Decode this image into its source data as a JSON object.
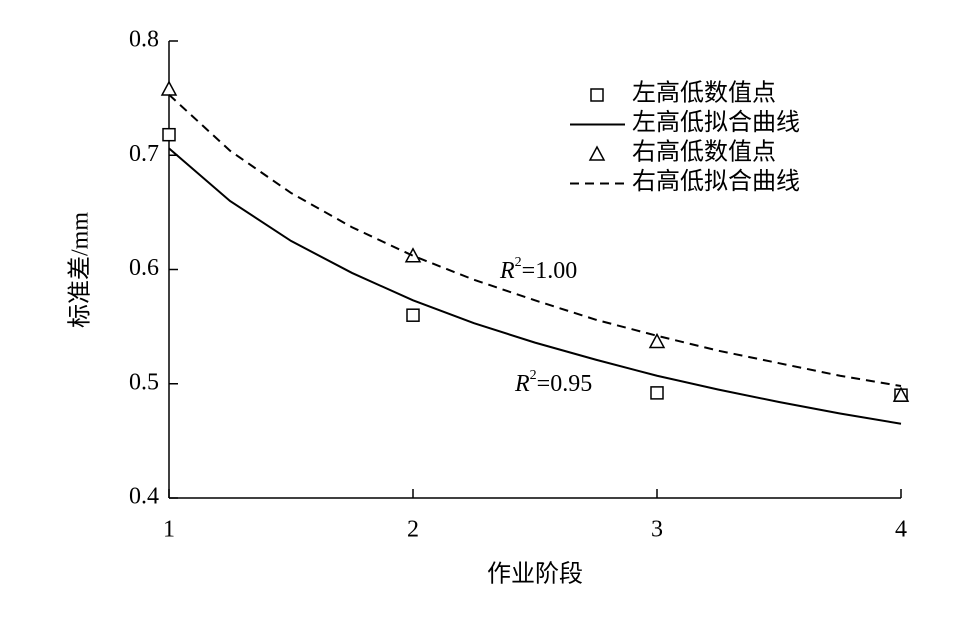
{
  "chart_data": {
    "type": "scatter",
    "x_label": "作业阶段",
    "y_label": "标准差/mm",
    "xlim": [
      1,
      4
    ],
    "xticks": [
      1,
      2,
      3,
      4
    ],
    "ylim": [
      0.4,
      0.8
    ],
    "yticks": [
      0.4,
      0.5,
      0.6,
      0.7,
      0.8
    ],
    "legend": "upper right",
    "series": [
      {
        "name": "左高低数值点",
        "kind": "points",
        "marker": "square",
        "color": "#000000",
        "x": [
          1,
          2,
          3,
          4
        ],
        "values": [
          0.718,
          0.56,
          0.492,
          0.49
        ]
      },
      {
        "name": "左高低拟合曲线",
        "kind": "line",
        "style": "solid",
        "color": "#000000",
        "x": [
          1,
          1.25,
          1.5,
          1.75,
          2,
          2.25,
          2.5,
          2.75,
          3,
          3.25,
          3.5,
          3.75,
          4
        ],
        "values": [
          0.706,
          0.66,
          0.625,
          0.597,
          0.573,
          0.553,
          0.536,
          0.521,
          0.507,
          0.495,
          0.484,
          0.474,
          0.465
        ]
      },
      {
        "name": "右高低数值点",
        "kind": "points",
        "marker": "triangle",
        "color": "#000000",
        "x": [
          1,
          2,
          3,
          4
        ],
        "values": [
          0.758,
          0.612,
          0.537,
          0.49
        ]
      },
      {
        "name": "右高低拟合曲线",
        "kind": "line",
        "style": "dashed",
        "color": "#000000",
        "x": [
          1,
          1.25,
          1.5,
          1.75,
          2,
          2.25,
          2.5,
          2.75,
          3,
          3.25,
          3.5,
          3.75,
          4
        ],
        "values": [
          0.753,
          0.704,
          0.667,
          0.637,
          0.612,
          0.591,
          0.573,
          0.556,
          0.542,
          0.529,
          0.518,
          0.507,
          0.498
        ]
      }
    ],
    "annotations": [
      {
        "parts": [
          "R",
          "2",
          "=1.00"
        ]
      },
      {
        "parts": [
          "R",
          "2",
          "=0.95"
        ]
      }
    ]
  }
}
